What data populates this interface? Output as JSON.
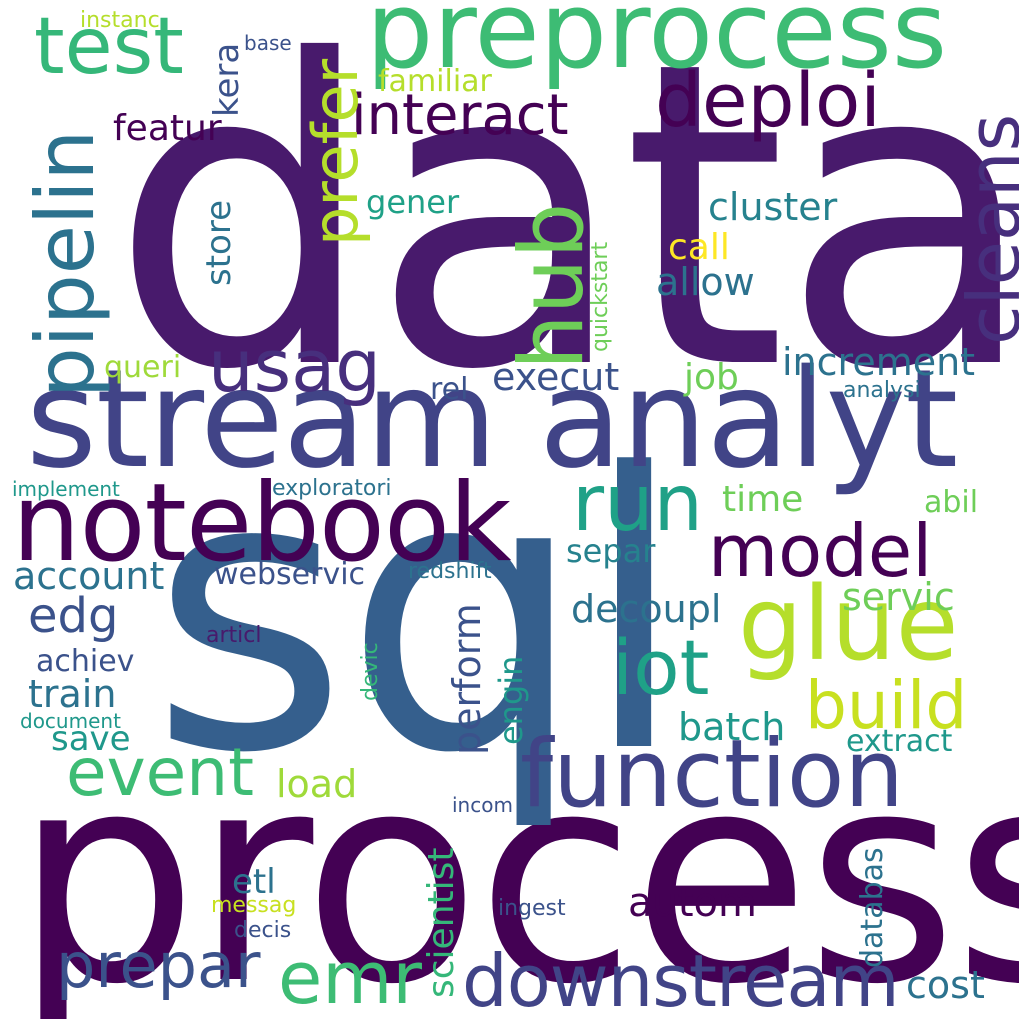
{
  "palette": {
    "dark_purple": "#440154",
    "purple": "#481a6c",
    "indigo": "#472f7d",
    "blue_violet": "#414487",
    "slate_blue": "#3b528b",
    "steel_blue": "#355f8d",
    "teal_blue": "#2c728e",
    "teal": "#26828e",
    "sea_green": "#1f988b",
    "green_teal": "#1fa187",
    "emerald": "#35b779",
    "green": "#3dbc74",
    "lime_green": "#6ece58",
    "yellow_green": "#9fda3a",
    "chartreuse": "#b5de2b",
    "yellow": "#fde725"
  },
  "words": [
    {
      "text": "data",
      "color": "#481a6c"
    },
    {
      "text": "process",
      "color": "#440154"
    },
    {
      "text": "sql",
      "color": "#355f8d"
    },
    {
      "text": "stream analyt",
      "color": "#414487"
    },
    {
      "text": "preprocess",
      "color": "#3dbc74"
    },
    {
      "text": "notebook",
      "color": "#440154"
    },
    {
      "text": "function",
      "color": "#414487"
    },
    {
      "text": "glue",
      "color": "#b5de2b"
    },
    {
      "text": "test",
      "color": "#35b779"
    },
    {
      "text": "pipelin",
      "color": "#2c728e"
    },
    {
      "text": "hub",
      "color": "#6ece58"
    },
    {
      "text": "cleans",
      "color": "#472f7d"
    },
    {
      "text": "deploi",
      "color": "#440154"
    },
    {
      "text": "run",
      "color": "#1fa187"
    },
    {
      "text": "model",
      "color": "#440154"
    },
    {
      "text": "iot",
      "color": "#1fa187"
    },
    {
      "text": "event",
      "color": "#3dbc74"
    },
    {
      "text": "build",
      "color": "#c8e020"
    },
    {
      "text": "usag",
      "color": "#472f7d"
    },
    {
      "text": "interact",
      "color": "#440154"
    },
    {
      "text": "prefer",
      "color": "#b5de2b"
    },
    {
      "text": "downstream",
      "color": "#414487"
    },
    {
      "text": "emr",
      "color": "#3dbc74"
    },
    {
      "text": "prepar",
      "color": "#3b528b"
    },
    {
      "text": "featur",
      "color": "#440154"
    },
    {
      "text": "edg",
      "color": "#3b528b"
    },
    {
      "text": "account",
      "color": "#2c728e"
    },
    {
      "text": "train",
      "color": "#2c728e"
    },
    {
      "text": "achiev",
      "color": "#3b528b"
    },
    {
      "text": "save",
      "color": "#1f988b"
    },
    {
      "text": "cluster",
      "color": "#26828e"
    },
    {
      "text": "call",
      "color": "#fde725"
    },
    {
      "text": "allow",
      "color": "#2c728e"
    },
    {
      "text": "increment",
      "color": "#2c728e"
    },
    {
      "text": "execut",
      "color": "#3b528b"
    },
    {
      "text": "job",
      "color": "#6ece58"
    },
    {
      "text": "time",
      "color": "#6ece58"
    },
    {
      "text": "abil",
      "color": "#6ece58"
    },
    {
      "text": "separ",
      "color": "#26828e"
    },
    {
      "text": "decoupl",
      "color": "#2c728e"
    },
    {
      "text": "servic",
      "color": "#6ece58"
    },
    {
      "text": "batch",
      "color": "#1f988b"
    },
    {
      "text": "extract",
      "color": "#1f988b"
    },
    {
      "text": "webservic",
      "color": "#3b528b"
    },
    {
      "text": "perform",
      "color": "#3b528b"
    },
    {
      "text": "engin",
      "color": "#1f988b"
    },
    {
      "text": "load",
      "color": "#9fda3a"
    },
    {
      "text": "autom",
      "color": "#440154"
    },
    {
      "text": "cost",
      "color": "#2c728e"
    },
    {
      "text": "gener",
      "color": "#1fa187"
    },
    {
      "text": "store",
      "color": "#2c728e"
    },
    {
      "text": "queri",
      "color": "#9fda3a"
    },
    {
      "text": "rel",
      "color": "#3b528b"
    },
    {
      "text": "kera",
      "color": "#3b528b"
    },
    {
      "text": "familiar",
      "color": "#b5de2b"
    },
    {
      "text": "base",
      "color": "#3b528b"
    },
    {
      "text": "instanc",
      "color": "#b5de2b"
    },
    {
      "text": "quickstart",
      "color": "#6ece58"
    },
    {
      "text": "analysi",
      "color": "#2c728e"
    },
    {
      "text": "implement",
      "color": "#1f988b"
    },
    {
      "text": "exploratori",
      "color": "#2c728e"
    },
    {
      "text": "redshift",
      "color": "#2c728e"
    },
    {
      "text": "articl",
      "color": "#481a6c"
    },
    {
      "text": "devic",
      "color": "#35b779"
    },
    {
      "text": "document",
      "color": "#1f988b"
    },
    {
      "text": "incom",
      "color": "#3b528b"
    },
    {
      "text": "etl",
      "color": "#2c728e"
    },
    {
      "text": "messag",
      "color": "#c8e020"
    },
    {
      "text": "decis",
      "color": "#3b528b"
    },
    {
      "text": "scientist",
      "color": "#35b779"
    },
    {
      "text": "databas",
      "color": "#2c728e"
    },
    {
      "text": "ingest",
      "color": "#3b528b"
    }
  ]
}
